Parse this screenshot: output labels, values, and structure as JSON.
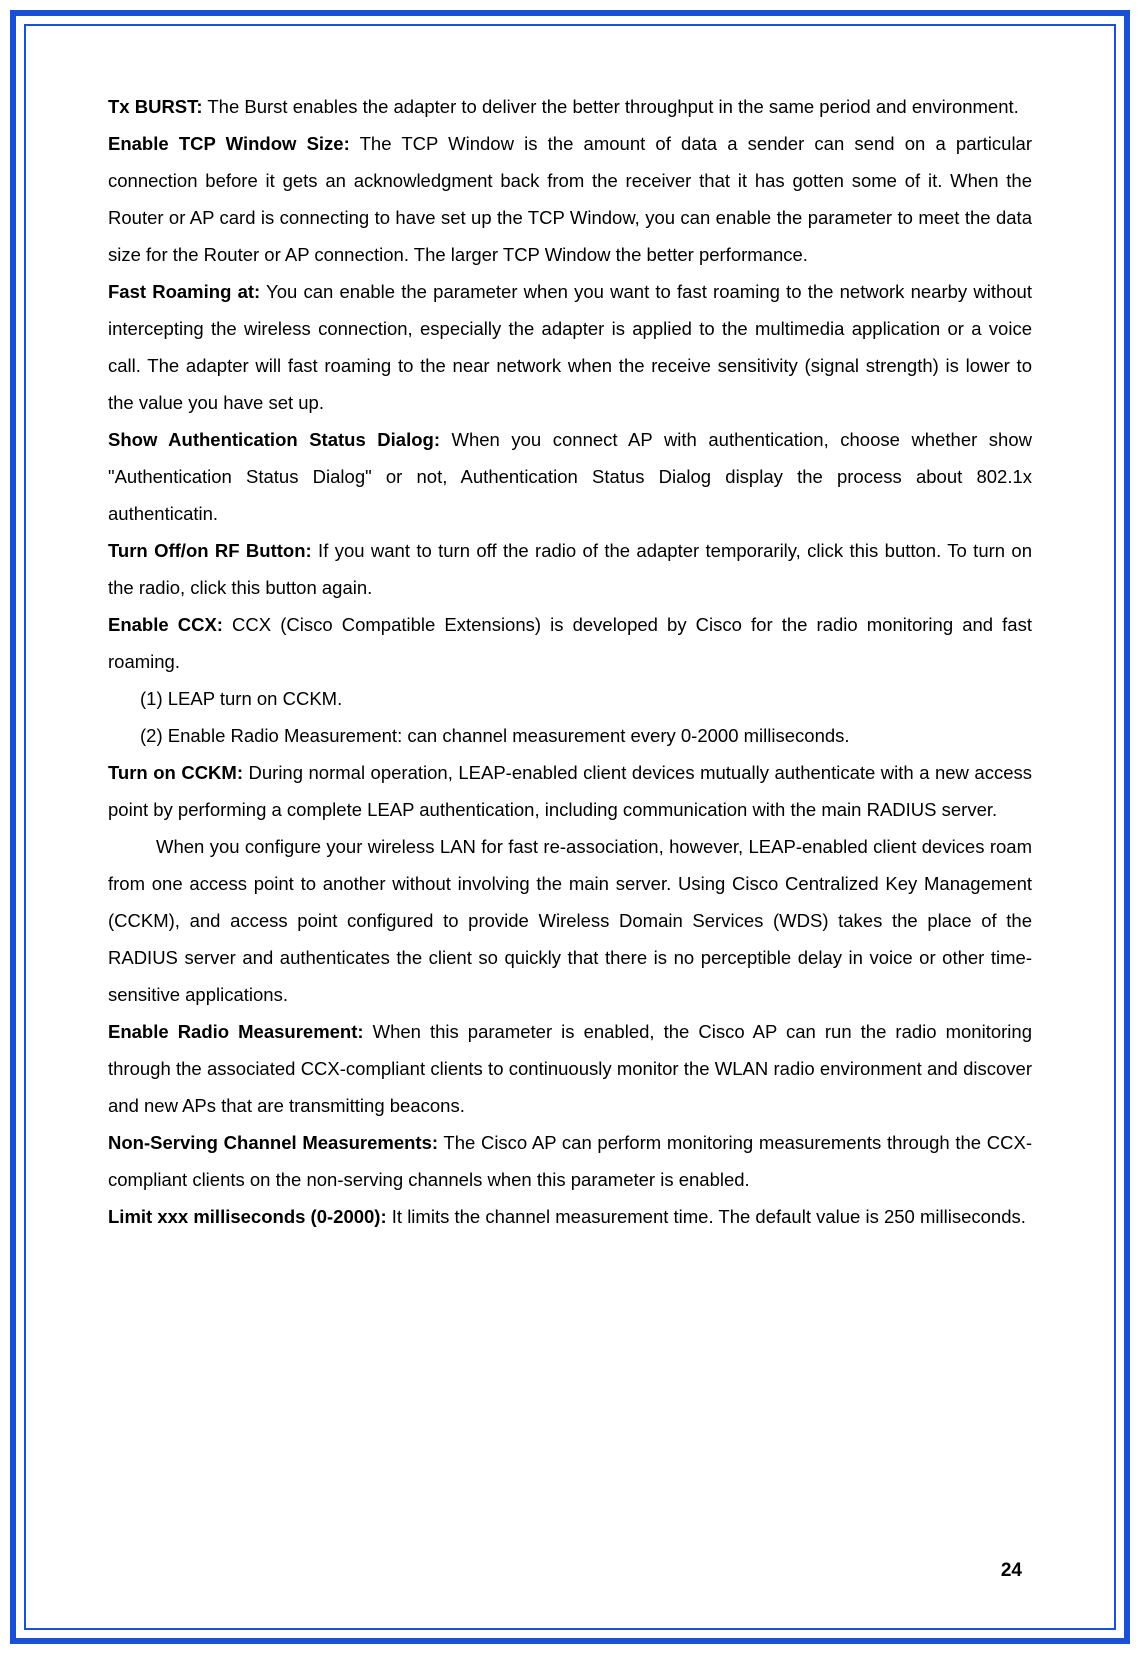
{
  "border_outer_color": "#1a4fd6",
  "border_inner_color": "#1a4fd6",
  "text_color": "#000000",
  "background_color": "#ffffff",
  "font_size": 18.5,
  "line_height": 2.0,
  "page_number": "24",
  "paragraphs": {
    "tx_burst_label": "Tx BURST:",
    "tx_burst_text": " The Burst enables the adapter to deliver the better throughput in the same period and environment.",
    "tcp_window_label": "Enable TCP Window Size:",
    "tcp_window_text": " The TCP Window is the amount of data a sender can send on a particular connection before it gets an acknowledgment back from the receiver that it has gotten some of it. When the Router or AP card is connecting to have set up the TCP Window, you can enable the parameter to meet the data size for the Router or AP connection. The larger TCP Window the better performance.",
    "fast_roaming_label": "Fast Roaming at:",
    "fast_roaming_text": " You can enable the parameter when you want to fast roaming to the network nearby without intercepting the wireless connection, especially the adapter is applied to the multimedia application or a voice call. The adapter will fast roaming to the near network when the receive sensitivity (signal strength) is lower to the value you have set up.",
    "show_auth_label": "Show Authentication Status Dialog:",
    "show_auth_text": " When you connect AP with authentication, choose whether show \"Authentication Status Dialog\" or not, Authentication Status Dialog display the process about 802.1x authenticatin.",
    "turn_off_rf_label": "Turn Off/on RF Button:",
    "turn_off_rf_text": " If you want to turn off the radio of the adapter temporarily, click this button. To turn on the radio, click this button again.",
    "enable_ccx_label": "Enable CCX:",
    "enable_ccx_text": " CCX (Cisco Compatible Extensions) is developed by Cisco for the radio monitoring and fast roaming.",
    "list_item_1": "(1)  LEAP turn on CCKM.",
    "list_item_2": "(2)  Enable Radio Measurement: can channel measurement every 0-2000 milliseconds.",
    "turn_on_cckm_label": "Turn on CCKM:",
    "turn_on_cckm_text": " During normal operation, LEAP-enabled client devices mutually authenticate with a new access point by performing a complete LEAP authentication, including communication with the main RADIUS server.",
    "cckm_continuation": "When you configure your wireless LAN for fast re-association, however, LEAP-enabled client devices roam from one access point to another without involving the main server. Using Cisco Centralized Key Management (CCKM), and access point configured to provide Wireless Domain Services (WDS) takes the place of the RADIUS server and authenticates the client so quickly that there is no perceptible delay in voice or other time-sensitive applications.",
    "enable_radio_label": "Enable Radio Measurement:",
    "enable_radio_text": " When this parameter is enabled, the Cisco AP can run the radio monitoring through the associated CCX-compliant clients to continuously monitor the WLAN radio environment and discover and new APs that are transmitting beacons.",
    "non_serving_label": "Non-Serving Channel Measurements:",
    "non_serving_text": " The Cisco AP can perform monitoring measurements through the CCX-compliant clients on the non-serving channels when this parameter is enabled.",
    "limit_label": "Limit xxx milliseconds (0-2000):",
    "limit_text": " It limits the channel measurement time. The default value is 250 milliseconds."
  }
}
